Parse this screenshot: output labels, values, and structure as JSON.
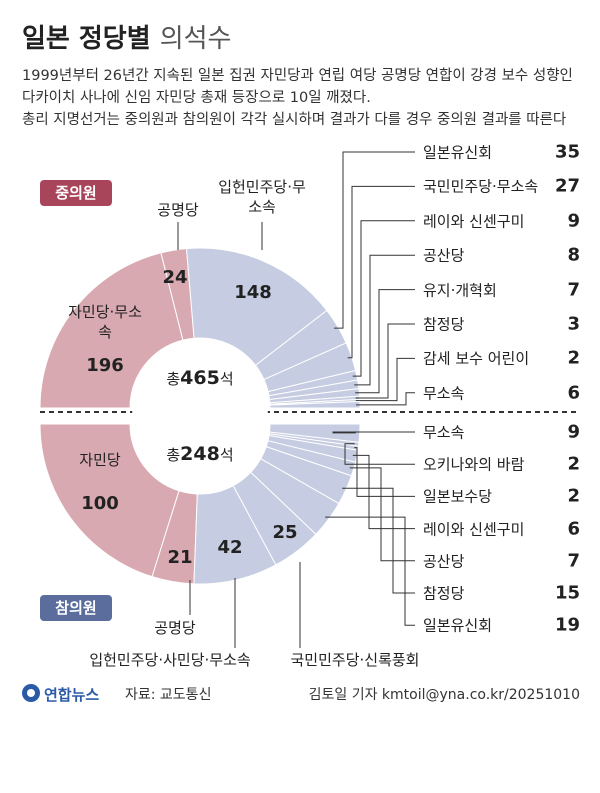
{
  "header": {
    "title": "일본 정당별",
    "title_light": "의석수",
    "description": [
      "1999년부터 26년간 지속된 일본 집권 자민당과 연립 여당 공명당 연합이 강경 보수 성향인",
      "다카이치 사나에 신임 자민당 총재 등장으로 10일 깨졌다.",
      "총리 지명선거는 중의원과 참의원이 각각 실시하며 결과가 다를 경우 중의원 결과를 따른다"
    ]
  },
  "chart_data": [
    {
      "type": "pie",
      "half": "top",
      "title": "중의원",
      "title_color": "#a8455b",
      "total_prefix": "총",
      "total": 465,
      "total_suffix": "석",
      "categories": [
        "자민당·무소속",
        "공명당",
        "입헌민주당·무소속",
        "일본유신회",
        "국민민주당·무소속",
        "레이와 신센구미",
        "공산당",
        "유지·개혁회",
        "참정당",
        "감세 보수 어린이",
        "무소속"
      ],
      "values": [
        196,
        24,
        148,
        35,
        27,
        9,
        8,
        7,
        3,
        2,
        6
      ],
      "colors": [
        "#d8a9b0",
        "#d8a9b0",
        "#c6cce1",
        "#c6cce1",
        "#c6cce1",
        "#c6cce1",
        "#c6cce1",
        "#c6cce1",
        "#c6cce1",
        "#c6cce1",
        "#c6cce1"
      ]
    },
    {
      "type": "pie",
      "half": "bottom",
      "title": "참의원",
      "title_color": "#5b6d9d",
      "total_prefix": "총",
      "total": 248,
      "total_suffix": "석",
      "categories": [
        "자민당",
        "공명당",
        "입헌민주당·사민당·무소속",
        "국민민주당·신록풍회",
        "일본유신회",
        "참정당",
        "공산당",
        "레이와 신센구미",
        "일본보수당",
        "오키나와의 바람",
        "무소속"
      ],
      "values": [
        100,
        21,
        42,
        25,
        19,
        15,
        7,
        6,
        2,
        2,
        9
      ],
      "colors": [
        "#d8a9b0",
        "#d8a9b0",
        "#c6cce1",
        "#c6cce1",
        "#c6cce1",
        "#c6cce1",
        "#c6cce1",
        "#c6cce1",
        "#c6cce1",
        "#c6cce1",
        "#c6cce1"
      ]
    }
  ],
  "footer": {
    "logo": "연합뉴스",
    "source": "자료: 교도통신",
    "credit": "김토일 기자 kmtoil@yna.co.kr/20251010"
  }
}
